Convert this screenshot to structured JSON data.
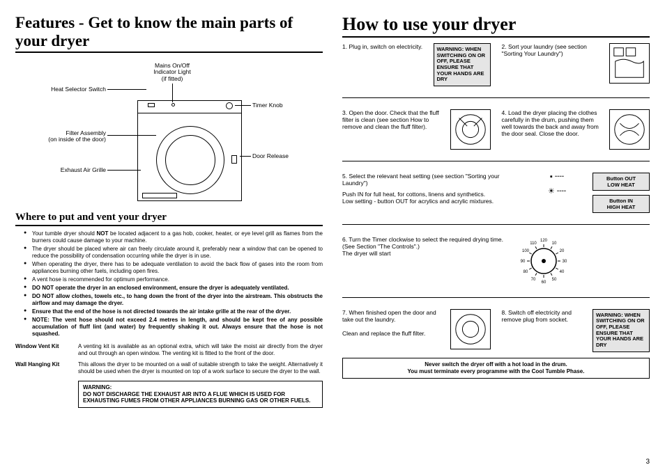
{
  "left": {
    "features_title": "Features - Get to know the main parts of your dryer",
    "labels": {
      "heat_switch": "Heat Selector Switch",
      "mains": "Mains On/Off\nIndicator Light\n(if fitted)",
      "timer": "Timer Knob",
      "filter": "Filter Assembly\n(on inside of the door)",
      "door_release": "Door Release",
      "exhaust": "Exhaust Air Grille"
    },
    "where_title": "Where to put and vent your dryer",
    "bullets": [
      "Your tumble dryer should <b>NOT</b> be located adjacent to a gas hob, cooker, heater, or eye level grill as flames from the burners could cause damage to your machine.",
      "The dryer should be placed where air can freely circulate around it, preferably near a window that can be opened to reduce the possibility of condensation occurring while the dryer is in use.",
      "When operating the dryer, there has to be adequate ventilation to avoid the back flow of gases into the room from appliances burning other fuels, including open fires.",
      "A vent hose is recommended for optimum performance.",
      "<b>DO NOT operate the dryer in an enclosed environment, ensure the dryer is adequately ventilated.</b>",
      "<b>DO NOT allow clothes, towels etc., to hang down the front of the dryer into the airstream. This obstructs the airflow and may damage the dryer.</b>",
      "<b>Ensure that the end of the hose is not directed towards the air intake grille at the rear of the dryer.</b>",
      "<b>NOTE: The vent hose should not exceed 2.4 metres in length, and should be kept free of any possible accumulation of fluff lint (and water) by frequently shaking it out. Always ensure that the hose is not squashed.</b>"
    ],
    "kits": [
      {
        "label": "Window Vent Kit",
        "text": "A venting kit is available as an optional extra, which will take the moist air directly from the dryer and out through an open window. The venting kit is fitted to the front of the door."
      },
      {
        "label": "Wall Hanging Kit",
        "text": "This allows the dryer to be mounted on a wall of suitable strength to take the weight. Alternatively it should be used when the dryer is mounted on top of a work surface to secure the dryer to the wall."
      }
    ],
    "warning": {
      "title": "WARNING:",
      "body": "DO NOT DISCHARGE THE EXHAUST AIR INTO A FLUE WHICH IS USED FOR EXHAUSTING FUMES FROM OTHER APPLIANCES BURNING GAS OR OTHER FUELS."
    }
  },
  "right": {
    "title": "How to use your dryer",
    "warn": "WARNING: WHEN SWITCHING ON OR OFF, PLEASE ENSURE THAT YOUR HANDS ARE DRY",
    "s1": "1.  Plug in, switch on electricity.",
    "s2": "2.  Sort your laundry (see section \"Sorting Your Laundry\")",
    "s3": "3.  Open the door. Check that the fluff filter is clean (see section How to remove and clean the fluff filter).",
    "s4": "4. Load the dryer placing the clothes carefully in the drum, pushing them well towards the back and away from the door seal. Close the door.",
    "s5": "5.  Select the relevant heat setting (see section \"Sorting your Laundry\")",
    "s5b": "Push IN for full heat, for cottons, linens and synthetics.\nLow setting - button OUT for acrylics and acrylic mixtures.",
    "heat_out": "Button OUT\nLOW HEAT",
    "heat_in": "Button IN\nHIGH HEAT",
    "s6": "6.  Turn the Timer clockwise to select the required drying time. (See Section \"The Controls\".)\nThe dryer will start",
    "s7": "7.  When finished open the door and take out the laundry.\n\nClean and replace the fluff filter.",
    "s8": "8.  Switch off electricity and remove plug from socket.",
    "dial_ticks": [
      "120",
      "10",
      "20",
      "30",
      "40",
      "50",
      "60",
      "70",
      "80",
      "90",
      "100",
      "110"
    ],
    "footnote": "Never switch the dryer off with a hot load in the drum.\nYou must terminate every programme with the Cool Tumble Phase."
  },
  "page": "3"
}
